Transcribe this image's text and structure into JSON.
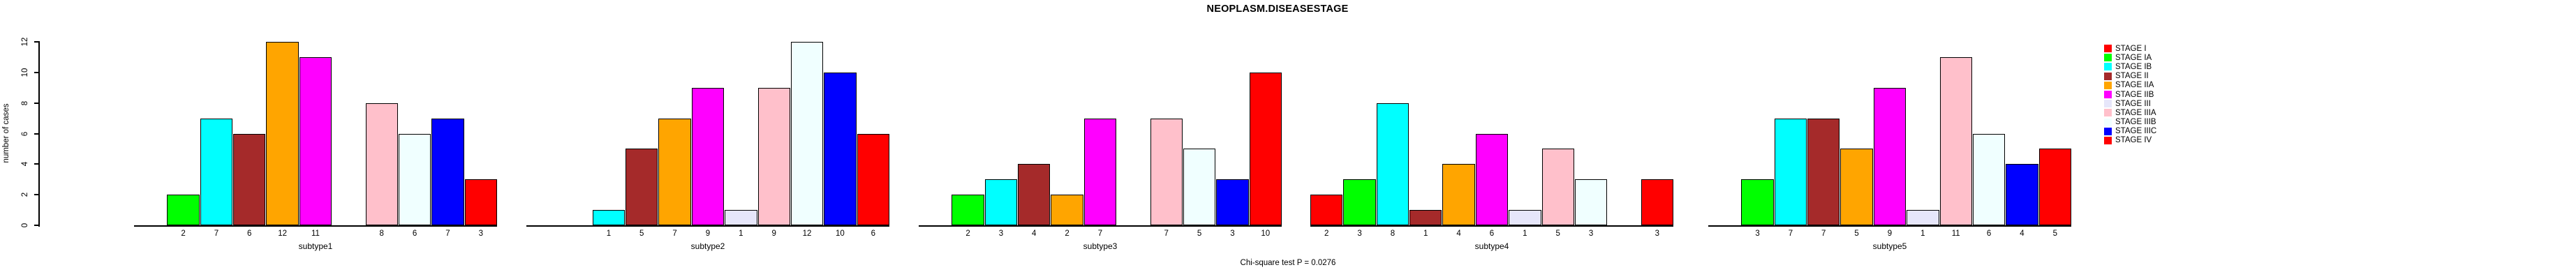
{
  "chart_data": {
    "type": "bar",
    "title": "NEOPLASM.DISEASESTAGE",
    "ylabel": "number of cases",
    "xlabel": "",
    "ylim": [
      0,
      12
    ],
    "yticks": [
      0,
      2,
      4,
      6,
      8,
      10,
      12
    ],
    "grid": false,
    "legend_position": "right",
    "note": "Chi-square test P = 0.0276",
    "stages": [
      {
        "label": "STAGE I",
        "color": "#FF0000"
      },
      {
        "label": "STAGE IA",
        "color": "#00FF00"
      },
      {
        "label": "STAGE IB",
        "color": "#00FFFF"
      },
      {
        "label": "STAGE II",
        "color": "#A52A2A"
      },
      {
        "label": "STAGE IIA",
        "color": "#FFA500"
      },
      {
        "label": "STAGE IIB",
        "color": "#FF00FF"
      },
      {
        "label": "STAGE III",
        "color": "#E6E6FA"
      },
      {
        "label": "STAGE IIIA",
        "color": "#FFC0CB"
      },
      {
        "label": "STAGE IIIB",
        "color": "#F0FFFF"
      },
      {
        "label": "STAGE IIIC",
        "color": "#0000FF"
      },
      {
        "label": "STAGE IV",
        "color": "#FF0000"
      }
    ],
    "panels": [
      {
        "label": "subtype1",
        "values": [
          0,
          2,
          7,
          6,
          12,
          11,
          0,
          8,
          6,
          7,
          3
        ]
      },
      {
        "label": "subtype2",
        "values": [
          0,
          0,
          1,
          5,
          7,
          9,
          1,
          9,
          12,
          10,
          6
        ]
      },
      {
        "label": "subtype3",
        "values": [
          0,
          2,
          3,
          4,
          2,
          7,
          0,
          7,
          5,
          3,
          10
        ]
      },
      {
        "label": "subtype4",
        "values": [
          2,
          3,
          8,
          1,
          4,
          6,
          1,
          5,
          3,
          0,
          3
        ]
      },
      {
        "label": "subtype5",
        "values": [
          0,
          3,
          7,
          7,
          5,
          9,
          1,
          11,
          6,
          4,
          5
        ]
      }
    ],
    "zero_value_bars_hidden": true
  }
}
